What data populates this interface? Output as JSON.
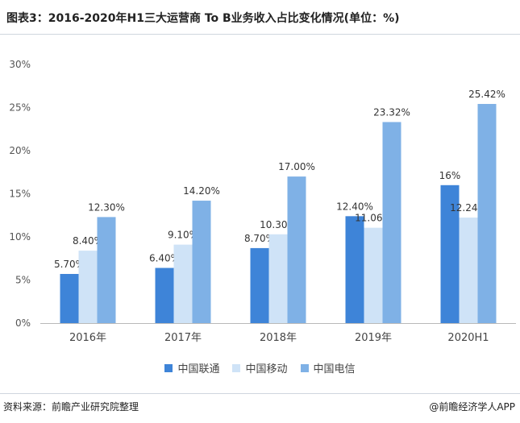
{
  "header": {
    "title": "图表3：2016-2020年H1三大运营商 To B业务收入占比变化情况(单位：%)"
  },
  "footer": {
    "source": "资料来源：前瞻产业研究院整理",
    "brand": "@前瞻经济学人APP"
  },
  "chart_data": {
    "type": "bar",
    "title": "图表3：2016-2020年H1三大运营商 To B业务收入占比变化情况(单位：%)",
    "categories": [
      "2016年",
      "2017年",
      "2018年",
      "2019年",
      "2020H1"
    ],
    "series": [
      {
        "name": "中国联通",
        "color": "#3e84d8",
        "values": [
          5.7,
          6.4,
          8.7,
          12.4,
          16
        ],
        "labels": [
          "5.70%",
          "6.40%",
          "8.70%",
          "12.40%",
          "16%"
        ]
      },
      {
        "name": "中国移动",
        "color": "#cfe3f7",
        "values": [
          8.4,
          9.1,
          10.3,
          11.06,
          12.24
        ],
        "labels": [
          "8.40%",
          "9.10%",
          "10.30%",
          "11.06%",
          "12.24%"
        ]
      },
      {
        "name": "中国电信",
        "color": "#7fb1e6",
        "values": [
          12.3,
          14.2,
          17.0,
          23.32,
          25.42
        ],
        "labels": [
          "12.30%",
          "14.20%",
          "17.00%",
          "23.32%",
          "25.42%"
        ]
      }
    ],
    "yticks": [
      "0%",
      "5%",
      "10%",
      "15%",
      "20%",
      "25%",
      "30%"
    ],
    "ylim": [
      0,
      30
    ],
    "grid": false,
    "legend": "bottom"
  }
}
